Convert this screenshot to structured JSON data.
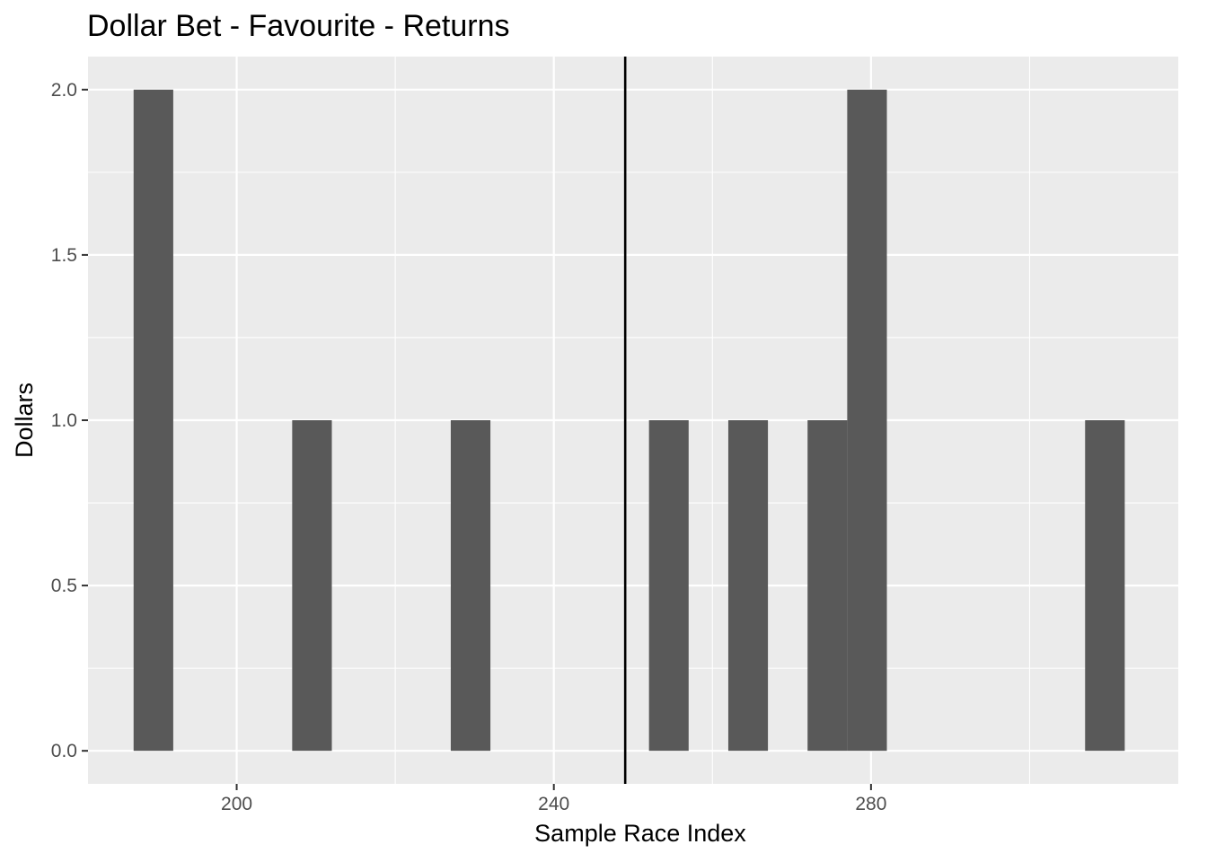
{
  "chart_data": {
    "type": "bar",
    "title": "Dollar Bet - Favourite - Returns",
    "xlabel": "Sample Race Index",
    "ylabel": "Dollars",
    "bars": [
      {
        "x": 189.5,
        "y": 2
      },
      {
        "x": 209.5,
        "y": 1
      },
      {
        "x": 229.5,
        "y": 1
      },
      {
        "x": 254.5,
        "y": 1
      },
      {
        "x": 264.5,
        "y": 1
      },
      {
        "x": 274.5,
        "y": 1
      },
      {
        "x": 279.5,
        "y": 2
      },
      {
        "x": 309.5,
        "y": 1
      }
    ],
    "bar_width": 5,
    "vline_x": 249,
    "xlim": [
      181.25,
      318.75
    ],
    "ylim": [
      -0.1,
      2.1
    ],
    "x_major_ticks": [
      200,
      240,
      280
    ],
    "x_minor_ticks": [
      220,
      260,
      300
    ],
    "x_tick_labels": [
      "200",
      "240",
      "280"
    ],
    "y_major_ticks": [
      0,
      0.5,
      1,
      1.5,
      2
    ],
    "y_minor_ticks": [
      0.25,
      0.75,
      1.25,
      1.75
    ],
    "y_tick_labels": [
      "0.0",
      "0.5",
      "1.0",
      "1.5",
      "2.0"
    ],
    "grid": true,
    "colors": {
      "panel_background": "#ebebeb",
      "grid": "#ffffff",
      "bar_fill": "#595959",
      "vline": "#000000",
      "tick_mark": "#333333"
    }
  }
}
